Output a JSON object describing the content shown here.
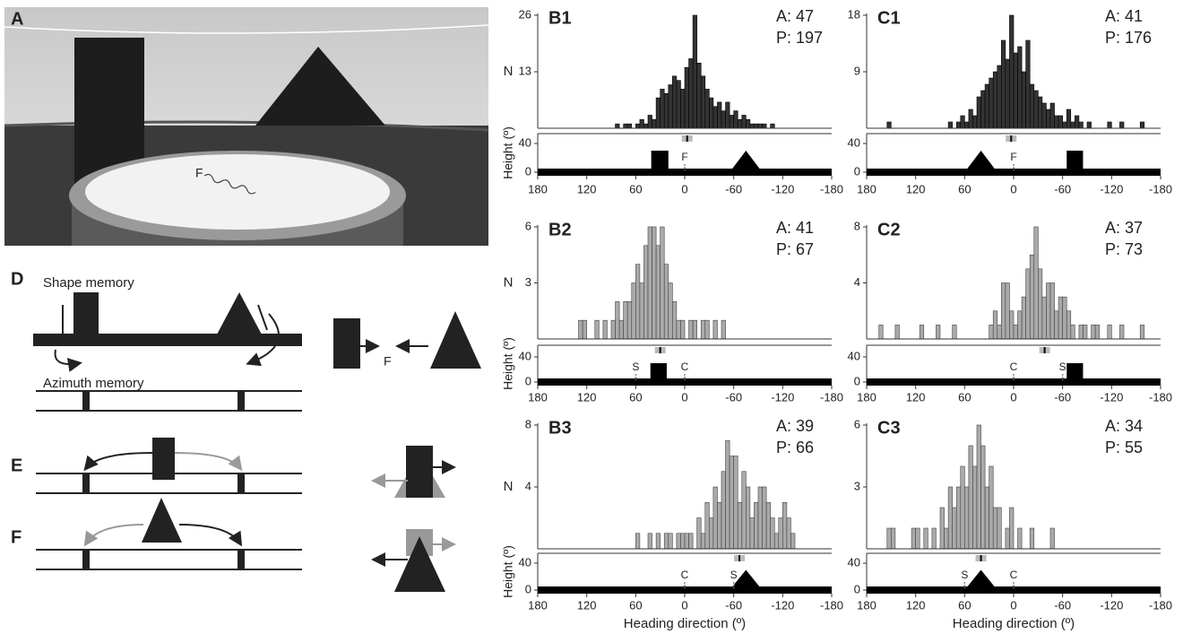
{
  "panels": [
    "A",
    "D",
    "E",
    "F"
  ],
  "photo": {
    "label": "F"
  },
  "diagram": {
    "shape_memory": "Shape memory",
    "azimuth_memory": "Azimuth memory",
    "goal_label": "F"
  },
  "chart_data": [
    {
      "type": "histogram",
      "title": "B1",
      "annotations": [
        "A: 47",
        "P: 197"
      ],
      "ylabel": "N",
      "color": "#333333",
      "bins": [
        85,
        80,
        75,
        70,
        65,
        60,
        55,
        50,
        45,
        40,
        35,
        30,
        25,
        20,
        15,
        10,
        5,
        0,
        -5,
        -10,
        -15,
        -20,
        -25,
        -30,
        -35,
        -40,
        -45,
        -50,
        -55,
        -60,
        -65,
        -70,
        -75,
        -80,
        -85,
        -90,
        -95,
        -100,
        -105,
        -110
      ],
      "values": [
        1,
        0,
        1,
        1,
        0,
        1,
        2,
        1,
        3,
        2,
        7,
        9,
        8,
        10,
        12,
        11,
        9,
        14,
        16,
        26,
        15,
        12,
        9,
        7,
        5,
        6,
        4,
        6,
        3,
        4,
        2,
        3,
        2,
        1,
        1,
        1,
        1,
        0,
        1
      ],
      "xlim": [
        180,
        -180
      ],
      "xticks": [
        180,
        120,
        60,
        0,
        -60,
        -120,
        -180
      ],
      "ylim": [
        0,
        26
      ],
      "yticks": [
        13,
        26
      ],
      "lower": {
        "ylabel": "Height (º)",
        "ylim": [
          0,
          40
        ],
        "yticks": [
          0,
          40
        ],
        "mean": -3,
        "landmarks": [
          {
            "shape": "rect",
            "from": 41,
            "to": 20,
            "height": 30
          },
          {
            "shape": "triangle",
            "from": -55,
            "to": -95,
            "height": 30
          }
        ],
        "markers": [
          {
            "label": "F",
            "x": 0
          }
        ]
      }
    },
    {
      "type": "histogram",
      "title": "B2",
      "annotations": [
        "A: 41",
        "P: 67"
      ],
      "ylabel": "N",
      "color": "#aaaaaa",
      "bins": [
        130,
        125,
        120,
        115,
        110,
        105,
        100,
        95,
        90,
        85,
        80,
        75,
        70,
        65,
        60,
        55,
        50,
        45,
        40,
        35,
        30,
        25,
        20,
        15,
        10,
        5,
        0,
        -5,
        -10,
        -15,
        -20,
        -25,
        -30,
        -35,
        -40,
        -45,
        -50
      ],
      "values": [
        1,
        1,
        0,
        0,
        1,
        0,
        1,
        0,
        1,
        2,
        1,
        2,
        2,
        3,
        4,
        3,
        5,
        6,
        6,
        5,
        6,
        4,
        3,
        2,
        1,
        1,
        0,
        1,
        1,
        0,
        1,
        1,
        0,
        1,
        0,
        1
      ],
      "xlim": [
        180,
        -180
      ],
      "xticks": [
        180,
        120,
        60,
        0,
        -60,
        -120,
        -180
      ],
      "ylim": [
        0,
        6
      ],
      "yticks": [
        3,
        6
      ],
      "lower": {
        "ylabel": "Height (º)",
        "ylim": [
          0,
          40
        ],
        "yticks": [
          0,
          40
        ],
        "mean": 30,
        "landmarks": [
          {
            "shape": "rect",
            "from": 42,
            "to": 22,
            "height": 30
          }
        ],
        "markers": [
          {
            "label": "S",
            "x": 60
          },
          {
            "label": "C",
            "x": 0
          }
        ]
      }
    },
    {
      "type": "histogram",
      "title": "B3",
      "annotations": [
        "A: 39",
        "P: 66"
      ],
      "ylabel": "N",
      "xlabel": "Heading direction (º)",
      "color": "#aaaaaa",
      "bins": [
        60,
        55,
        50,
        45,
        40,
        35,
        30,
        25,
        20,
        15,
        10,
        5,
        0,
        -5,
        -10,
        -15,
        -20,
        -25,
        -30,
        -35,
        -40,
        -45,
        -50,
        -55,
        -60,
        -65,
        -70,
        -75,
        -80,
        -85,
        -90,
        -95,
        -100,
        -105,
        -110,
        -115,
        -120,
        -125,
        -130,
        -135
      ],
      "values": [
        1,
        0,
        0,
        1,
        0,
        1,
        0,
        1,
        1,
        0,
        1,
        1,
        1,
        1,
        0,
        2,
        1,
        3,
        2,
        4,
        3,
        5,
        7,
        6,
        6,
        3,
        5,
        4,
        2,
        3,
        4,
        4,
        3,
        2,
        1,
        2,
        3,
        2,
        1
      ],
      "xlim": [
        180,
        -180
      ],
      "xticks": [
        180,
        120,
        60,
        0,
        -60,
        -120,
        -180
      ],
      "ylim": [
        0,
        8
      ],
      "yticks": [
        4,
        8
      ],
      "lower": {
        "ylabel": "Height (º)",
        "ylim": [
          0,
          40
        ],
        "yticks": [
          0,
          40
        ],
        "mean": -67,
        "landmarks": [
          {
            "shape": "triangle",
            "from": -55,
            "to": -95,
            "height": 30
          }
        ],
        "markers": [
          {
            "label": "C",
            "x": 0
          },
          {
            "label": "S",
            "x": -60
          }
        ]
      }
    },
    {
      "type": "histogram",
      "title": "C1",
      "annotations": [
        "A: 41",
        "P: 176"
      ],
      "color": "#333333",
      "bins": [
        155,
        150,
        145,
        140,
        135,
        130,
        125,
        120,
        115,
        110,
        105,
        100,
        95,
        90,
        85,
        80,
        75,
        70,
        65,
        60,
        55,
        50,
        45,
        40,
        35,
        30,
        25,
        20,
        15,
        10,
        5,
        0,
        -5,
        -10,
        -15,
        -20,
        -25,
        -30,
        -35,
        -40,
        -45,
        -50,
        -55,
        -60,
        -65,
        -70,
        -75,
        -80,
        -85,
        -90,
        -95,
        -100,
        -105,
        -110,
        -115,
        -120,
        -125,
        -130,
        -135,
        -140,
        -145,
        -150,
        -155,
        -160
      ],
      "values": [
        1,
        0,
        0,
        0,
        0,
        0,
        0,
        0,
        0,
        0,
        0,
        0,
        0,
        0,
        0,
        1,
        0,
        1,
        2,
        1,
        3,
        2,
        5,
        6,
        7,
        8,
        9,
        10,
        14,
        11,
        18,
        12,
        13,
        9,
        14,
        7,
        6,
        5,
        4,
        3,
        4,
        2,
        2,
        1,
        3,
        1,
        2,
        1,
        0,
        1,
        0,
        0,
        0,
        0,
        1,
        0,
        0,
        1,
        0,
        0,
        0,
        0,
        1
      ],
      "xlim": [
        180,
        -180
      ],
      "xticks": [
        180,
        120,
        60,
        0,
        -60,
        -120,
        -180
      ],
      "ylim": [
        0,
        18
      ],
      "yticks": [
        9,
        18
      ],
      "lower": {
        "ylim": [
          0,
          40
        ],
        "yticks": [
          0,
          40
        ],
        "mean": 3,
        "landmarks": [
          {
            "shape": "triangle",
            "from": 60,
            "to": 20,
            "height": 30
          },
          {
            "shape": "rect",
            "from": -65,
            "to": -85,
            "height": 30
          }
        ],
        "markers": [
          {
            "label": "F",
            "x": 0
          }
        ]
      }
    },
    {
      "type": "histogram",
      "title": "C2",
      "annotations": [
        "A: 37",
        "P: 73"
      ],
      "color": "#aaaaaa",
      "bins": [
        165,
        160,
        155,
        150,
        145,
        140,
        135,
        130,
        125,
        120,
        115,
        110,
        105,
        100,
        95,
        90,
        85,
        80,
        75,
        70,
        65,
        60,
        55,
        50,
        45,
        40,
        35,
        30,
        25,
        20,
        15,
        10,
        5,
        0,
        -5,
        -10,
        -15,
        -20,
        -25,
        -30,
        -35,
        -40,
        -45,
        -50,
        -55,
        -60,
        -65,
        -70,
        -75,
        -80,
        -85,
        -90,
        -95,
        -100,
        -105,
        -110,
        -115,
        -120,
        -125,
        -130,
        -135,
        -140,
        -145,
        -150,
        -155,
        -160,
        -165
      ],
      "values": [
        1,
        0,
        0,
        0,
        1,
        0,
        0,
        0,
        0,
        0,
        1,
        0,
        0,
        0,
        1,
        0,
        0,
        0,
        1,
        0,
        0,
        0,
        0,
        0,
        0,
        0,
        0,
        1,
        2,
        1,
        4,
        4,
        2,
        1,
        2,
        3,
        5,
        6,
        8,
        5,
        3,
        4,
        4,
        2,
        3,
        3,
        2,
        1,
        0,
        1,
        1,
        0,
        1,
        1,
        0,
        0,
        1,
        0,
        0,
        1,
        0,
        0,
        0,
        0,
        1,
        0
      ],
      "xlim": [
        180,
        -180
      ],
      "xticks": [
        180,
        120,
        60,
        0,
        -60,
        -120,
        -180
      ],
      "ylim": [
        0,
        8
      ],
      "yticks": [
        4,
        8
      ],
      "lower": {
        "ylim": [
          0,
          40
        ],
        "yticks": [
          0,
          40
        ],
        "mean": -38,
        "landmarks": [
          {
            "shape": "rect",
            "from": -65,
            "to": -85,
            "height": 30
          }
        ],
        "markers": [
          {
            "label": "C",
            "x": 0
          },
          {
            "label": "S",
            "x": -60
          }
        ]
      }
    },
    {
      "type": "histogram",
      "title": "C3",
      "annotations": [
        "A: 34",
        "P: 55"
      ],
      "xlabel": "Heading direction (º)",
      "color": "#aaaaaa",
      "bins": [
        155,
        150,
        145,
        140,
        135,
        130,
        125,
        120,
        115,
        110,
        105,
        100,
        95,
        90,
        85,
        80,
        75,
        70,
        65,
        60,
        55,
        50,
        45,
        40,
        35,
        30,
        25,
        20,
        15,
        10,
        5,
        0,
        -5,
        -10,
        -15,
        -20,
        -25,
        -30,
        -35,
        -40,
        -45,
        -50,
        -55
      ],
      "values": [
        1,
        1,
        0,
        0,
        0,
        0,
        1,
        1,
        0,
        1,
        0,
        1,
        0,
        2,
        1,
        3,
        2,
        3,
        4,
        3,
        5,
        4,
        6,
        5,
        3,
        4,
        2,
        2,
        0,
        1,
        2,
        0,
        1,
        0,
        0,
        1,
        0,
        0,
        0,
        0,
        1,
        0
      ],
      "xlim": [
        180,
        -180
      ],
      "xticks": [
        180,
        120,
        60,
        0,
        -60,
        -120,
        -180
      ],
      "ylim": [
        0,
        6
      ],
      "yticks": [
        3,
        6
      ],
      "lower": {
        "ylim": [
          0,
          40
        ],
        "yticks": [
          0,
          40
        ],
        "mean": 40,
        "landmarks": [
          {
            "shape": "triangle",
            "from": 60,
            "to": 20,
            "height": 30
          }
        ],
        "markers": [
          {
            "label": "S",
            "x": 60
          },
          {
            "label": "C",
            "x": 0
          }
        ]
      }
    }
  ]
}
